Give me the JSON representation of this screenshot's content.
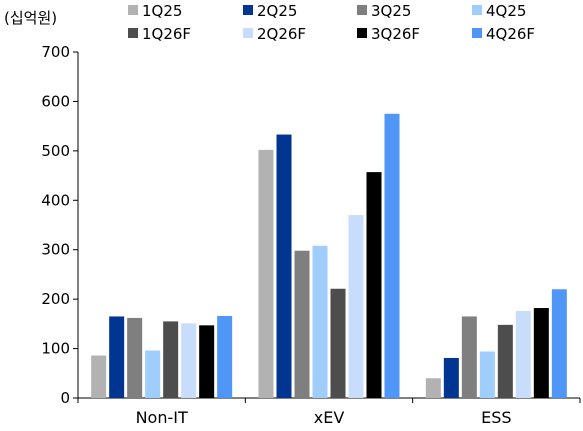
{
  "chart_data": {
    "type": "bar",
    "unit_label": "(십억원)",
    "title": "",
    "xlabel": "",
    "ylabel": "",
    "ylim": [
      0,
      700
    ],
    "yticks": [
      0,
      100,
      200,
      300,
      400,
      500,
      600,
      700
    ],
    "categories": [
      "Non-IT",
      "xEV",
      "ESS"
    ],
    "legend_position": "top",
    "grid": false,
    "series": [
      {
        "name": "1Q25",
        "color": "#b2b2b2",
        "values": [
          86,
          502,
          40
        ]
      },
      {
        "name": "2Q25",
        "color": "#003591",
        "values": [
          165,
          533,
          81
        ]
      },
      {
        "name": "3Q25",
        "color": "#7f7f7f",
        "values": [
          162,
          298,
          165
        ]
      },
      {
        "name": "4Q25",
        "color": "#9fcdfc",
        "values": [
          96,
          308,
          94
        ]
      },
      {
        "name": "1Q26F",
        "color": "#4d4d4d",
        "values": [
          155,
          221,
          148
        ]
      },
      {
        "name": "2Q26F",
        "color": "#c8dcfb",
        "values": [
          151,
          370,
          176
        ]
      },
      {
        "name": "3Q26F",
        "color": "#000000",
        "values": [
          147,
          457,
          182
        ]
      },
      {
        "name": "4Q26F",
        "color": "#5096f6",
        "values": [
          166,
          575,
          220
        ]
      }
    ]
  }
}
